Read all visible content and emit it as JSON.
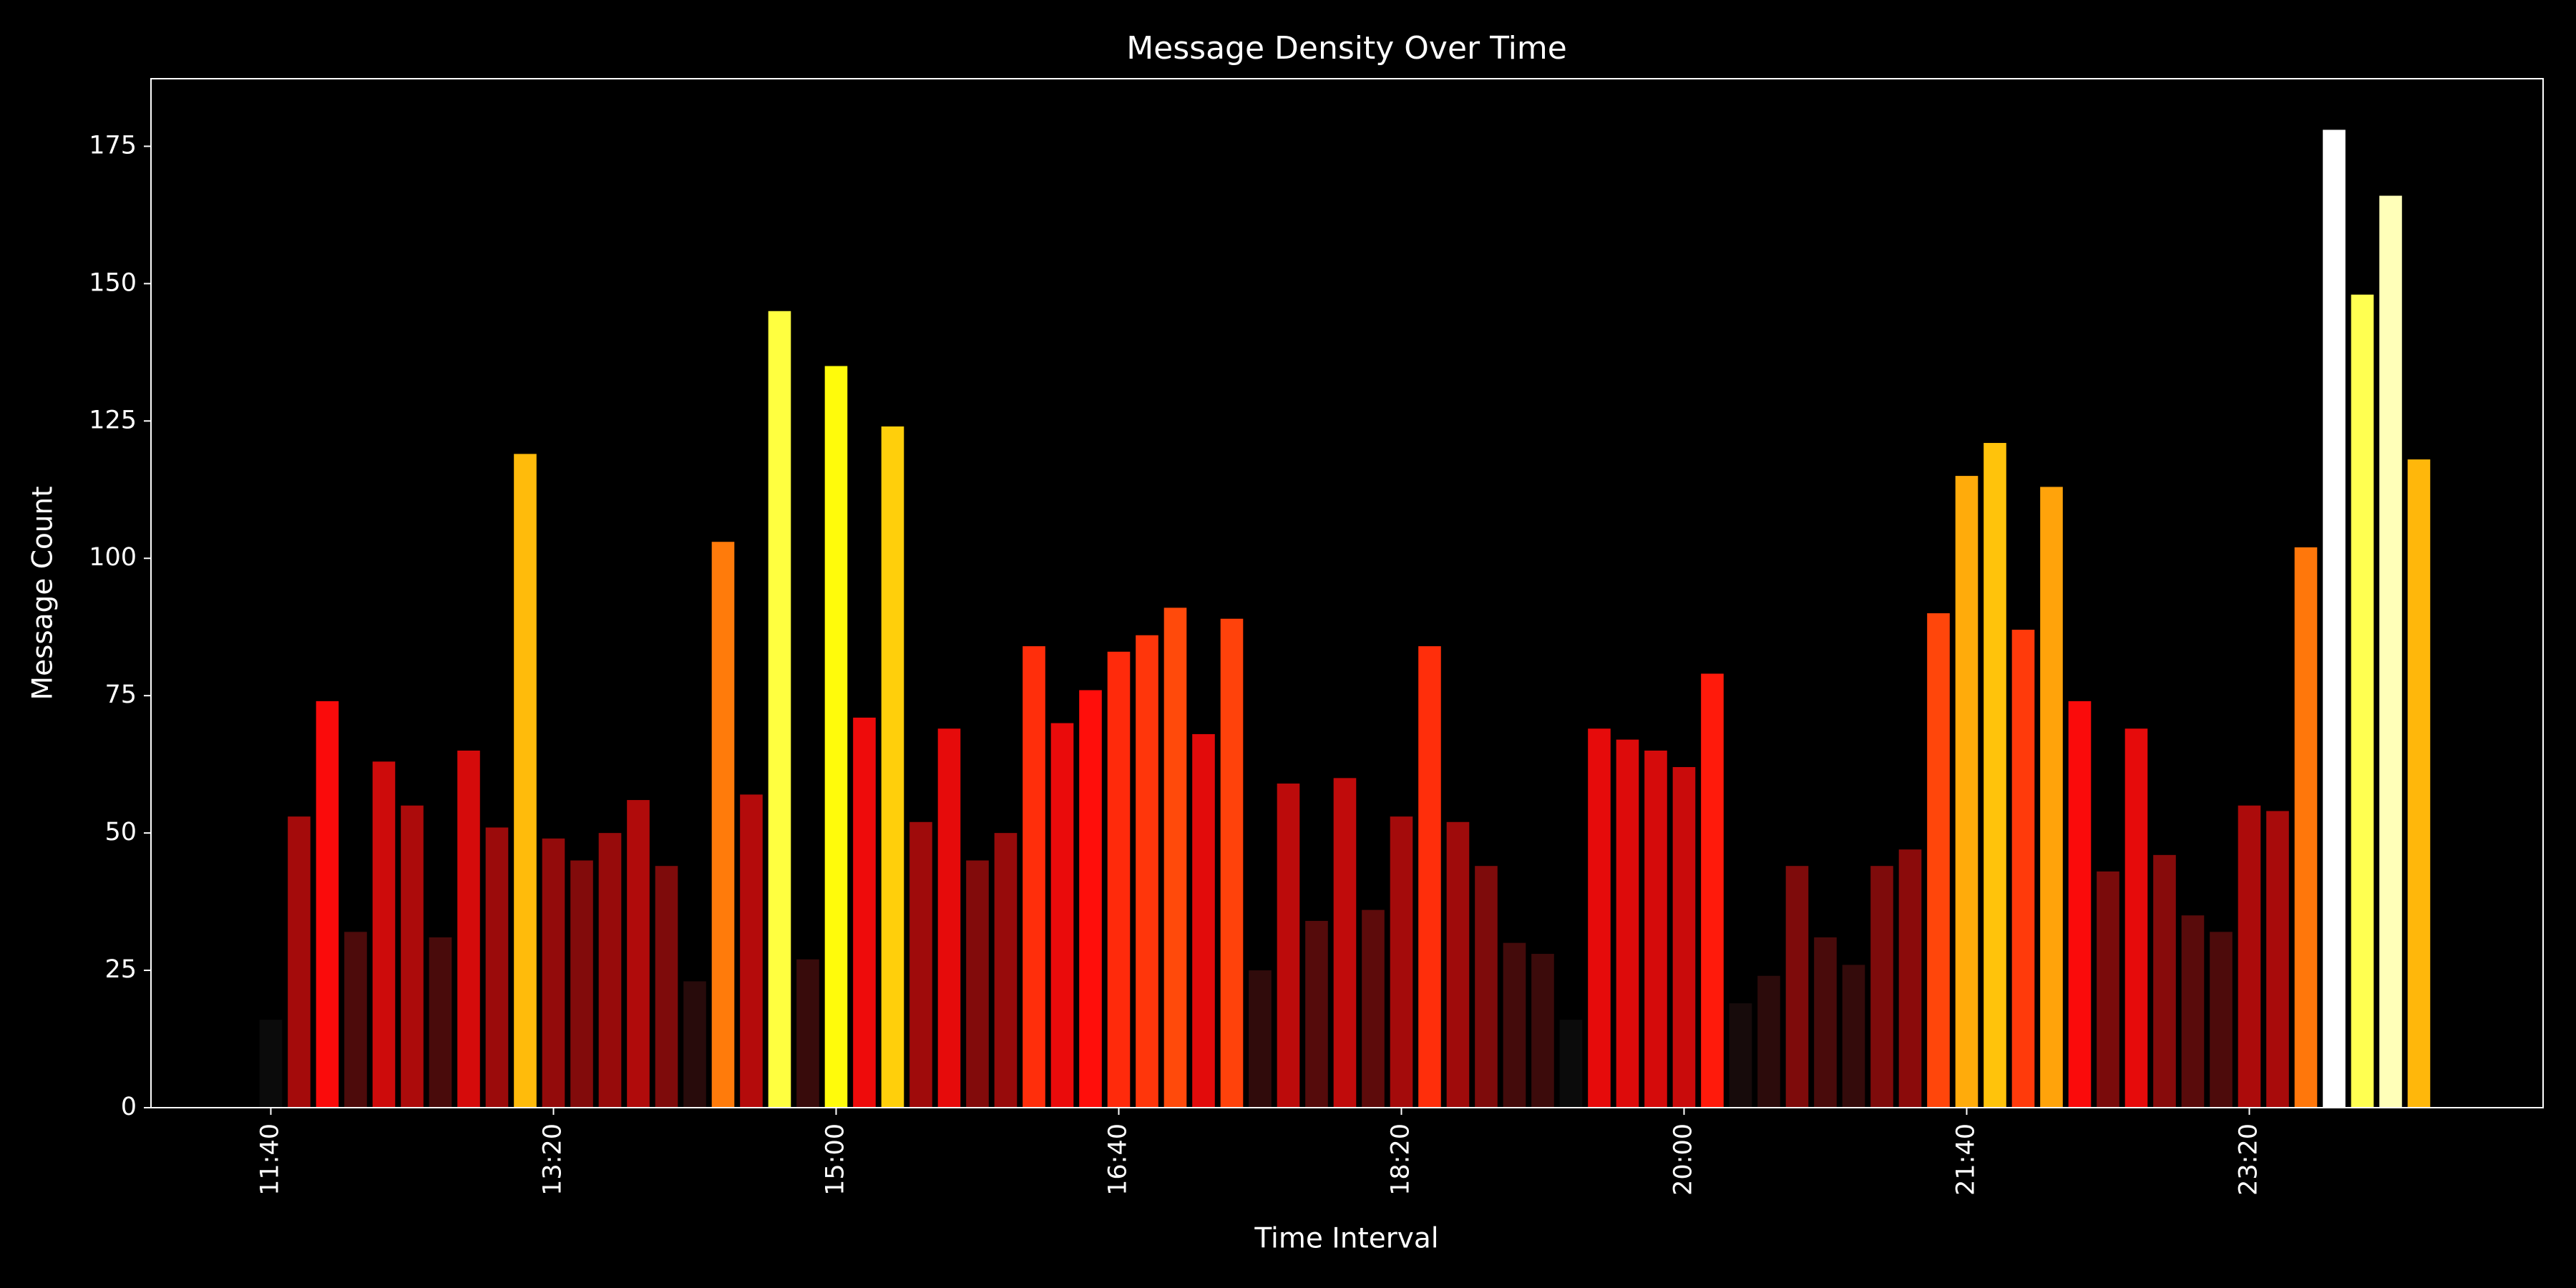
{
  "chart_data": {
    "type": "bar",
    "title": "Message Density Over Time",
    "x_label": "Time Interval",
    "y_label": "Message Count",
    "categories": [
      "11:40",
      null,
      null,
      null,
      null,
      null,
      null,
      null,
      null,
      null,
      "13:20",
      null,
      null,
      null,
      null,
      null,
      null,
      null,
      null,
      null,
      "15:00",
      null,
      null,
      null,
      null,
      null,
      null,
      null,
      null,
      null,
      "16:40",
      null,
      null,
      null,
      null,
      null,
      null,
      null,
      null,
      null,
      "18:20",
      null,
      null,
      null,
      null,
      null,
      null,
      null,
      null,
      null,
      "20:00",
      null,
      null,
      null,
      null,
      null,
      null,
      null,
      null,
      null,
      "21:40",
      null,
      null,
      null,
      null,
      null,
      null,
      null,
      null,
      null,
      "23:20",
      null,
      null,
      null,
      null,
      null,
      null
    ],
    "values": [
      16,
      53,
      74,
      32,
      63,
      55,
      31,
      65,
      51,
      119,
      49,
      45,
      50,
      56,
      44,
      23,
      103,
      57,
      145,
      27,
      135,
      71,
      124,
      52,
      69,
      45,
      50,
      84,
      70,
      76,
      83,
      86,
      91,
      68,
      89,
      25,
      59,
      34,
      60,
      36,
      53,
      84,
      52,
      44,
      30,
      28,
      16,
      69,
      67,
      65,
      62,
      79,
      19,
      24,
      44,
      31,
      26,
      44,
      47,
      90,
      115,
      121,
      87,
      113,
      74,
      43,
      69,
      46,
      35,
      32,
      55,
      54,
      102,
      178,
      148,
      166,
      118
    ],
    "colormap": "hot",
    "ylim": [
      0,
      187.3
    ],
    "yticks": [
      0,
      25,
      50,
      75,
      100,
      125,
      150,
      175
    ]
  }
}
